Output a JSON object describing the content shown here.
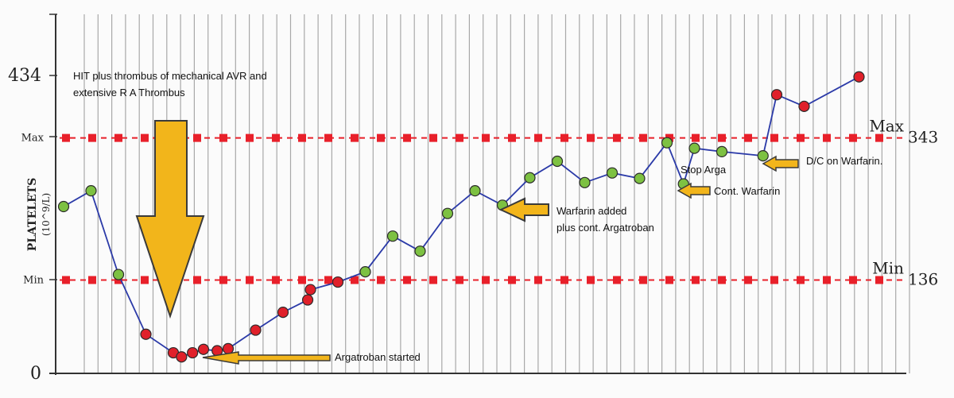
{
  "chart_data": {
    "type": "line",
    "title": "",
    "ylabel": "PLATELETS",
    "yunit": "(10^9/L)",
    "ylim": [
      0,
      434
    ],
    "y_ticks_left": [
      {
        "label": "434",
        "value": 434,
        "big": true
      },
      {
        "label": "Max",
        "value": 343,
        "big": false
      },
      {
        "label": "Min",
        "value": 136,
        "big": false
      },
      {
        "label": "0",
        "value": 0,
        "big": true
      }
    ],
    "reference_lines": [
      {
        "name": "Max",
        "value": 343,
        "right_label": "343",
        "color": "#e8202a"
      },
      {
        "name": "Min",
        "value": 136,
        "right_label": "136",
        "color": "#e8202a"
      }
    ],
    "grid": true,
    "series": [
      {
        "color": "#2b3aa8",
        "points": [
          {
            "x": 0,
            "y": 243,
            "c": "g"
          },
          {
            "x": 1,
            "y": 266,
            "c": "g"
          },
          {
            "x": 2,
            "y": 144,
            "c": "g"
          },
          {
            "x": 3,
            "y": 57,
            "c": "r"
          },
          {
            "x": 4,
            "y": 30,
            "c": "r"
          },
          {
            "x": 4.3,
            "y": 24,
            "c": "r"
          },
          {
            "x": 4.7,
            "y": 30,
            "c": "r"
          },
          {
            "x": 5.1,
            "y": 35,
            "c": "r"
          },
          {
            "x": 5.6,
            "y": 33,
            "c": "r"
          },
          {
            "x": 6,
            "y": 36,
            "c": "r"
          },
          {
            "x": 7,
            "y": 63,
            "c": "r"
          },
          {
            "x": 8,
            "y": 89,
            "c": "r"
          },
          {
            "x": 8.9,
            "y": 107,
            "c": "r"
          },
          {
            "x": 9,
            "y": 122,
            "c": "r"
          },
          {
            "x": 10,
            "y": 133,
            "c": "r"
          },
          {
            "x": 11,
            "y": 148,
            "c": "g"
          },
          {
            "x": 12,
            "y": 200,
            "c": "g"
          },
          {
            "x": 13,
            "y": 178,
            "c": "g"
          },
          {
            "x": 14,
            "y": 233,
            "c": "g"
          },
          {
            "x": 15,
            "y": 266,
            "c": "g"
          },
          {
            "x": 16,
            "y": 245,
            "c": "g"
          },
          {
            "x": 17,
            "y": 285,
            "c": "g"
          },
          {
            "x": 18,
            "y": 309,
            "c": "g"
          },
          {
            "x": 19,
            "y": 278,
            "c": "g"
          },
          {
            "x": 20,
            "y": 292,
            "c": "g"
          },
          {
            "x": 21,
            "y": 284,
            "c": "g"
          },
          {
            "x": 22,
            "y": 336,
            "c": "g"
          },
          {
            "x": 22.6,
            "y": 276,
            "c": "g"
          },
          {
            "x": 23,
            "y": 328,
            "c": "g"
          },
          {
            "x": 24,
            "y": 323,
            "c": "g"
          },
          {
            "x": 25.5,
            "y": 317,
            "c": "g"
          },
          {
            "x": 26,
            "y": 406,
            "c": "r"
          },
          {
            "x": 27,
            "y": 389,
            "c": "r"
          },
          {
            "x": 29,
            "y": 432,
            "c": "r"
          }
        ]
      }
    ],
    "annotations": [
      {
        "id": "hit",
        "text": [
          "HIT plus thrombus of mechanical AVR and",
          "extensive R A Thrombus"
        ]
      },
      {
        "id": "argatroban",
        "text": [
          "Argatroban started"
        ]
      },
      {
        "id": "warfarin",
        "text": [
          "Warfarin added",
          "plus cont. Argatroban"
        ]
      },
      {
        "id": "stoparga",
        "text": [
          "Stop Arga"
        ]
      },
      {
        "id": "contwarfarin",
        "text": [
          "Cont. Warfarin"
        ]
      },
      {
        "id": "dc",
        "text": [
          "D/C on Warfarin."
        ]
      }
    ]
  },
  "colors": {
    "line": "#2b3aa8",
    "green_point": "#7dc142",
    "red_point": "#e0202a",
    "arrow_fill": "#f2b51b",
    "reference": "#e8202a",
    "grid": "#9a9a9a"
  }
}
